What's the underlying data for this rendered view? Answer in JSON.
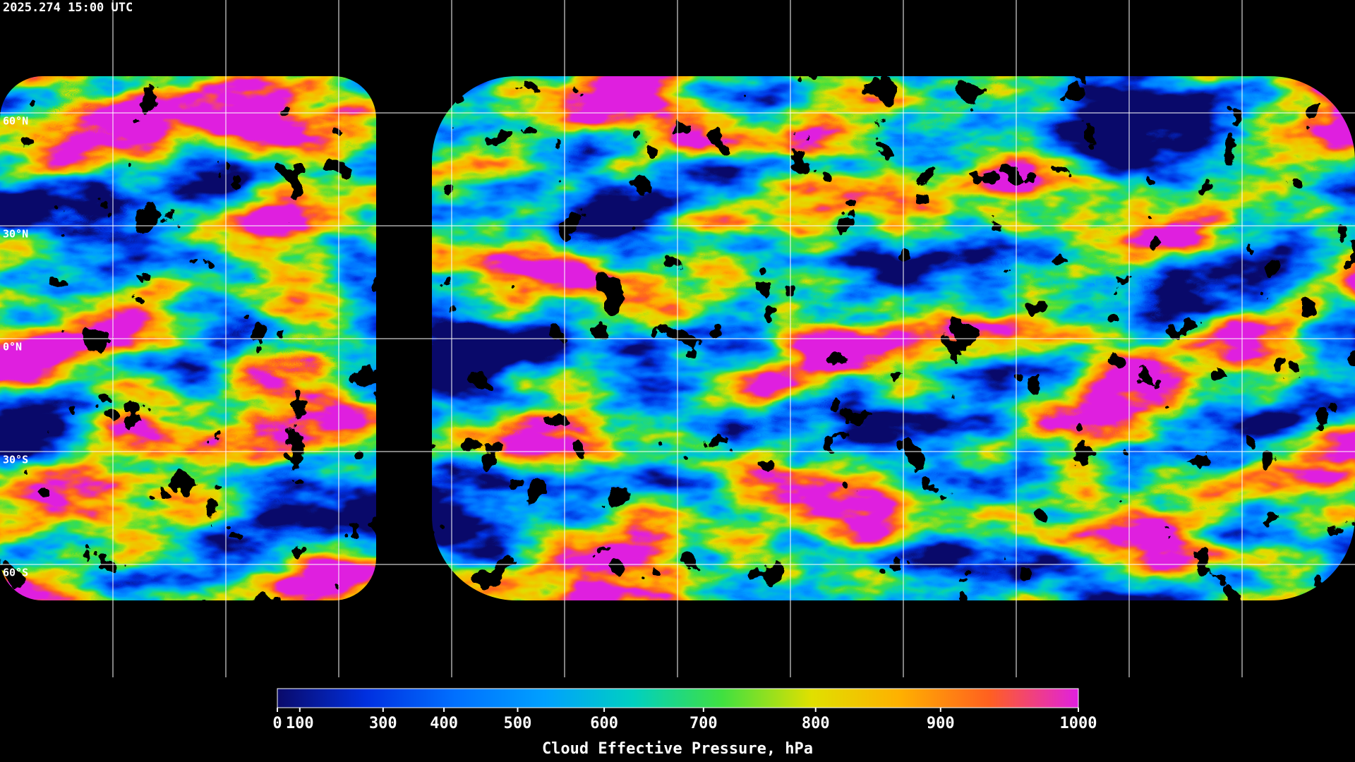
{
  "title": "2025.274 15:00 UTC",
  "map": {
    "xlim": [
      -180,
      180
    ],
    "xticks": [
      -150,
      -120,
      -90,
      -60,
      -30,
      0,
      30,
      60,
      90,
      120,
      150
    ],
    "ylim": [
      -90,
      90
    ],
    "yticks": [
      {
        "value": 60,
        "label": "60°N"
      },
      {
        "value": 30,
        "label": "30°N"
      },
      {
        "value": 0,
        "label": "0°N"
      },
      {
        "value": -30,
        "label": "30°S"
      },
      {
        "value": -60,
        "label": "60°S"
      }
    ],
    "grid": true
  },
  "colorbar": {
    "label": "Cloud Effective Pressure, hPa",
    "lim": [
      0,
      1000
    ],
    "ticks": [
      0,
      100,
      300,
      400,
      500,
      600,
      700,
      800,
      900,
      1000
    ],
    "colormap": [
      "#0a0a6a",
      "#0030e0",
      "#0070ff",
      "#00a0ff",
      "#00d0c0",
      "#40e040",
      "#e0e000",
      "#ffb000",
      "#ff6020",
      "#e020e0"
    ]
  }
}
